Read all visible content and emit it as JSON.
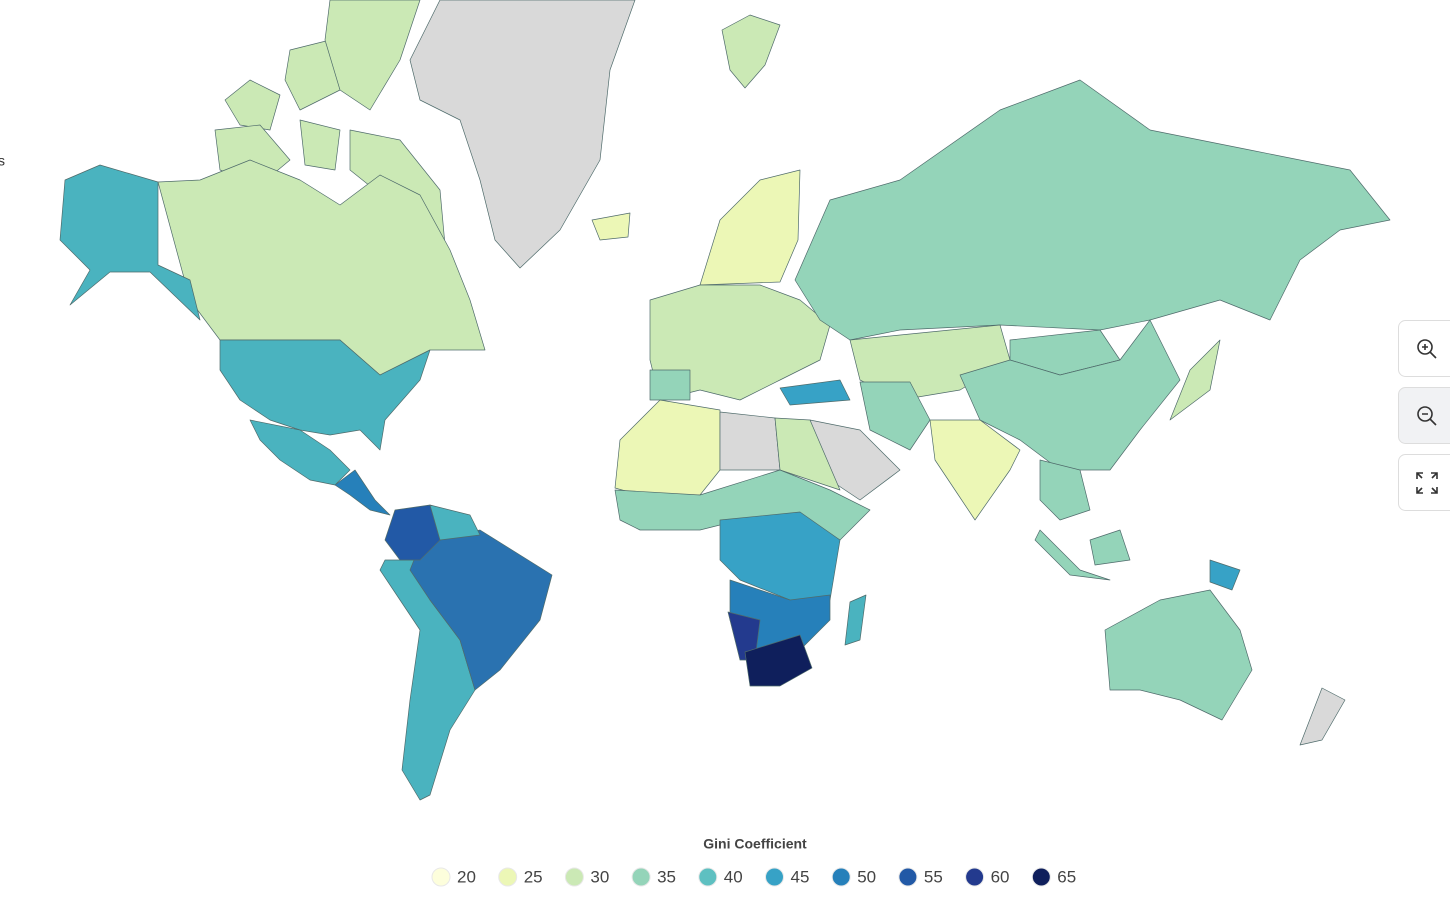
{
  "side_text": "s",
  "chart_data": {
    "type": "choropleth",
    "legend_title": "Gini Coefficient",
    "legend": [
      {
        "value": 20,
        "color": "#fdfedc"
      },
      {
        "value": 25,
        "color": "#ecf7b6"
      },
      {
        "value": 30,
        "color": "#cbe9b5"
      },
      {
        "value": 35,
        "color": "#94d4b9"
      },
      {
        "value": 40,
        "color": "#5ec0c1"
      },
      {
        "value": 45,
        "color": "#37a2c6"
      },
      {
        "value": 50,
        "color": "#2680ba"
      },
      {
        "value": 55,
        "color": "#2259a6"
      },
      {
        "value": 60,
        "color": "#233a8e"
      },
      {
        "value": 65,
        "color": "#0f1f5c"
      }
    ]
  }
}
